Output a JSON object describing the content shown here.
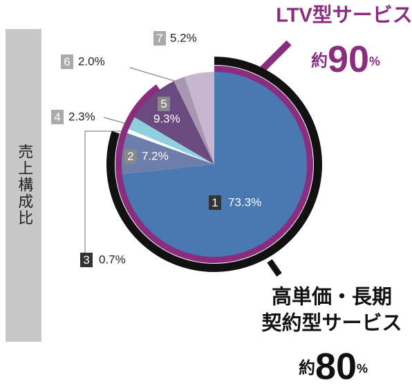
{
  "chart_data": {
    "type": "pie",
    "axis_label": "売上構成比",
    "categories": [
      "1",
      "2",
      "3",
      "4",
      "5",
      "6",
      "7"
    ],
    "values": [
      73.3,
      7.2,
      0.7,
      2.3,
      9.3,
      2.0,
      5.2
    ],
    "value_labels": [
      "73.3%",
      "7.2%",
      "0.7%",
      "2.3%",
      "9.3%",
      "2.0%",
      "5.2%"
    ],
    "colors": [
      "#4a78b0",
      "#6d7eab",
      "#ffffff",
      "#8fd0de",
      "#6b4a7f",
      "#a897b3",
      "#c6b7cf"
    ],
    "annotations": [
      {
        "lines": [
          "LTV型サービス"
        ],
        "prefix": "約",
        "value": 90,
        "unit": "%",
        "color": "#8b2d7e"
      },
      {
        "lines": [
          "高単価・長期",
          "契約型サービス"
        ],
        "prefix": "約",
        "value": 80,
        "unit": "%",
        "color": "#111111"
      }
    ]
  }
}
